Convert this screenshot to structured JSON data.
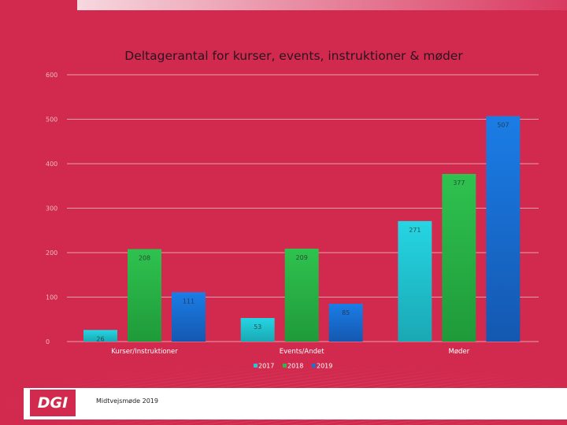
{
  "footer": {
    "logo_text": "DGI",
    "caption": "Midtvejsmøde 2019"
  },
  "colors": {
    "2017": "#25c6d6",
    "2018": "#2db84a",
    "2019": "#1a72d6",
    "background": "#d12a4e"
  },
  "chart_data": {
    "type": "bar",
    "title": "Deltagerantal for kurser, events, instruktioner & møder",
    "xlabel": "",
    "ylabel": "",
    "ylim": [
      0,
      600
    ],
    "yticks": [
      0,
      100,
      200,
      300,
      400,
      500,
      600
    ],
    "categories": [
      "Kurser/Instruktioner",
      "Events/Andet",
      "Møder"
    ],
    "series": [
      {
        "name": "2017",
        "values": [
          26,
          53,
          271
        ]
      },
      {
        "name": "2018",
        "values": [
          208,
          209,
          377
        ]
      },
      {
        "name": "2019",
        "values": [
          111,
          85,
          507
        ]
      }
    ],
    "grid": true,
    "legend": "bottom"
  }
}
